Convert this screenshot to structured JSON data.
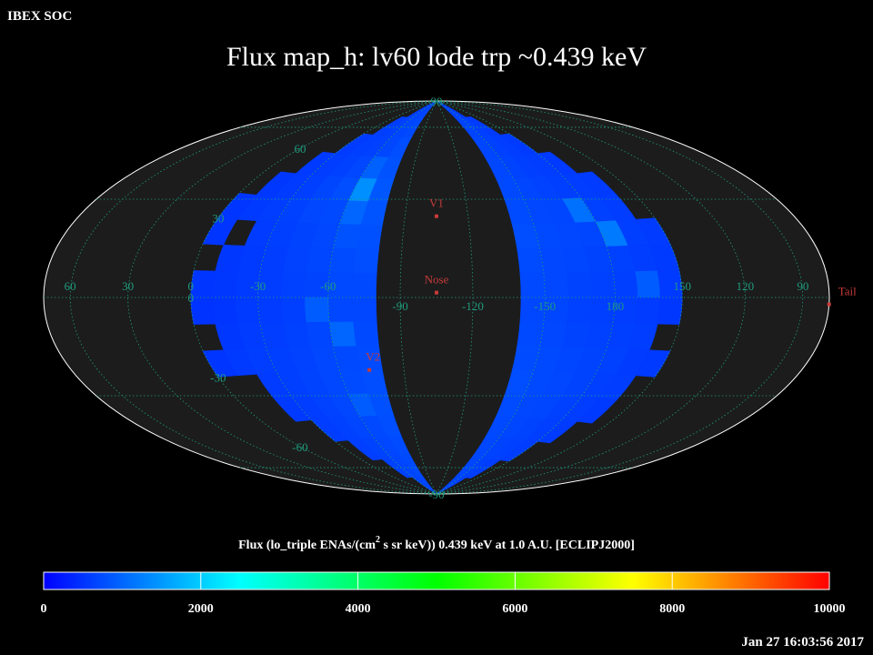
{
  "header": "IBEX SOC",
  "title": "Flux   map_h: lv60 lode trp ~0.439 keV",
  "timestamp": "Jan 27 16:03:56 2017",
  "map": {
    "projection": "hammer",
    "center_lon": -105,
    "grid_color": "#1f9c7c",
    "lat_labels": [
      90,
      60,
      30,
      0,
      -30,
      -60,
      -90
    ],
    "lon_labels": [
      60,
      30,
      0,
      -30,
      -60,
      -90,
      -120,
      -150,
      180,
      150,
      120,
      90
    ],
    "markers": [
      {
        "label": "V1",
        "lon": -105,
        "lat": 34
      },
      {
        "label": "Nose",
        "lon": -105,
        "lat": 2
      },
      {
        "label": "V2",
        "lon": -74,
        "lat": -30
      },
      {
        "label": "Tail",
        "lon": 75,
        "lat": -2
      }
    ],
    "strips": [
      {
        "lon_edges": [
          -80,
          -70,
          -60,
          -50,
          -40,
          -30,
          -20,
          -10,
          0
        ],
        "lat_edges": [
          90,
          80,
          70,
          60,
          50,
          40,
          30,
          20,
          10,
          0,
          -10,
          -20,
          -30,
          -40,
          -50,
          -60,
          -70,
          -80,
          -90
        ],
        "values": [
          [
            700,
            650,
            600,
            null,
            null,
            null,
            null,
            null
          ],
          [
            720,
            680,
            640,
            610,
            null,
            null,
            null,
            null
          ],
          [
            760,
            700,
            650,
            620,
            580,
            null,
            null,
            null
          ],
          [
            800,
            950,
            700,
            640,
            600,
            560,
            null,
            null
          ],
          [
            850,
            1400,
            760,
            690,
            620,
            580,
            540,
            null
          ],
          [
            820,
            1000,
            720,
            700,
            640,
            600,
            560,
            520
          ],
          [
            780,
            800,
            700,
            660,
            620,
            580,
            null,
            520
          ],
          [
            760,
            740,
            680,
            650,
            600,
            560,
            540,
            null
          ],
          [
            720,
            720,
            660,
            640,
            600,
            560,
            540,
            520
          ],
          [
            700,
            700,
            900,
            620,
            580,
            560,
            520,
            500
          ],
          [
            720,
            1000,
            680,
            640,
            600,
            580,
            540,
            null
          ],
          [
            740,
            720,
            700,
            650,
            620,
            600,
            560,
            520
          ],
          [
            760,
            740,
            700,
            660,
            620,
            580,
            null,
            null
          ],
          [
            780,
            900,
            700,
            650,
            600,
            560,
            null,
            null
          ],
          [
            760,
            720,
            680,
            640,
            600,
            null,
            null,
            null
          ],
          [
            740,
            700,
            660,
            620,
            null,
            null,
            null,
            null
          ],
          [
            720,
            680,
            640,
            null,
            null,
            null,
            null,
            null
          ],
          [
            700,
            660,
            null,
            null,
            null,
            null,
            null,
            null
          ]
        ]
      },
      {
        "lon_edges": [
          -140,
          -150,
          -160,
          -170,
          -180,
          -190,
          -200,
          -210
        ],
        "lat_edges": [
          90,
          80,
          70,
          60,
          50,
          40,
          30,
          20,
          10,
          0,
          -10,
          -20,
          -30,
          -40,
          -50,
          -60,
          -70,
          -80,
          -90
        ],
        "values": [
          [
            640,
            600,
            null,
            null,
            null,
            null,
            null
          ],
          [
            660,
            620,
            580,
            null,
            null,
            null,
            null
          ],
          [
            680,
            640,
            600,
            560,
            null,
            null,
            null
          ],
          [
            700,
            660,
            620,
            600,
            560,
            null,
            null
          ],
          [
            720,
            680,
            650,
            620,
            600,
            580,
            null
          ],
          [
            740,
            700,
            680,
            1100,
            640,
            600,
            null
          ],
          [
            760,
            720,
            700,
            680,
            1200,
            620,
            580
          ],
          [
            740,
            700,
            680,
            660,
            640,
            600,
            560
          ],
          [
            720,
            700,
            660,
            640,
            620,
            900,
            560
          ],
          [
            700,
            680,
            640,
            620,
            600,
            580,
            540
          ],
          [
            720,
            700,
            660,
            640,
            620,
            600,
            null
          ],
          [
            740,
            720,
            680,
            660,
            640,
            580,
            560
          ],
          [
            760,
            720,
            700,
            660,
            620,
            600,
            null
          ],
          [
            740,
            700,
            680,
            640,
            600,
            560,
            null
          ],
          [
            720,
            680,
            660,
            620,
            580,
            null,
            null
          ],
          [
            700,
            660,
            640,
            600,
            null,
            null,
            null
          ],
          [
            680,
            640,
            600,
            null,
            null,
            null,
            null
          ],
          [
            660,
            620,
            null,
            null,
            null,
            null,
            null
          ]
        ]
      }
    ]
  },
  "colorbar": {
    "label_parts": [
      "Flux (lo_triple ENAs/(cm",
      "2",
      " s sr keV))  0.439 keV at 1.0 A.U. [ECLIPJ2000]"
    ],
    "range": [
      0,
      10000
    ],
    "ticks": [
      0,
      2000,
      4000,
      6000,
      8000,
      10000
    ],
    "colormap": [
      "#0000ff",
      "#00ffff",
      "#00ff00",
      "#ffff00",
      "#ff0000"
    ]
  }
}
